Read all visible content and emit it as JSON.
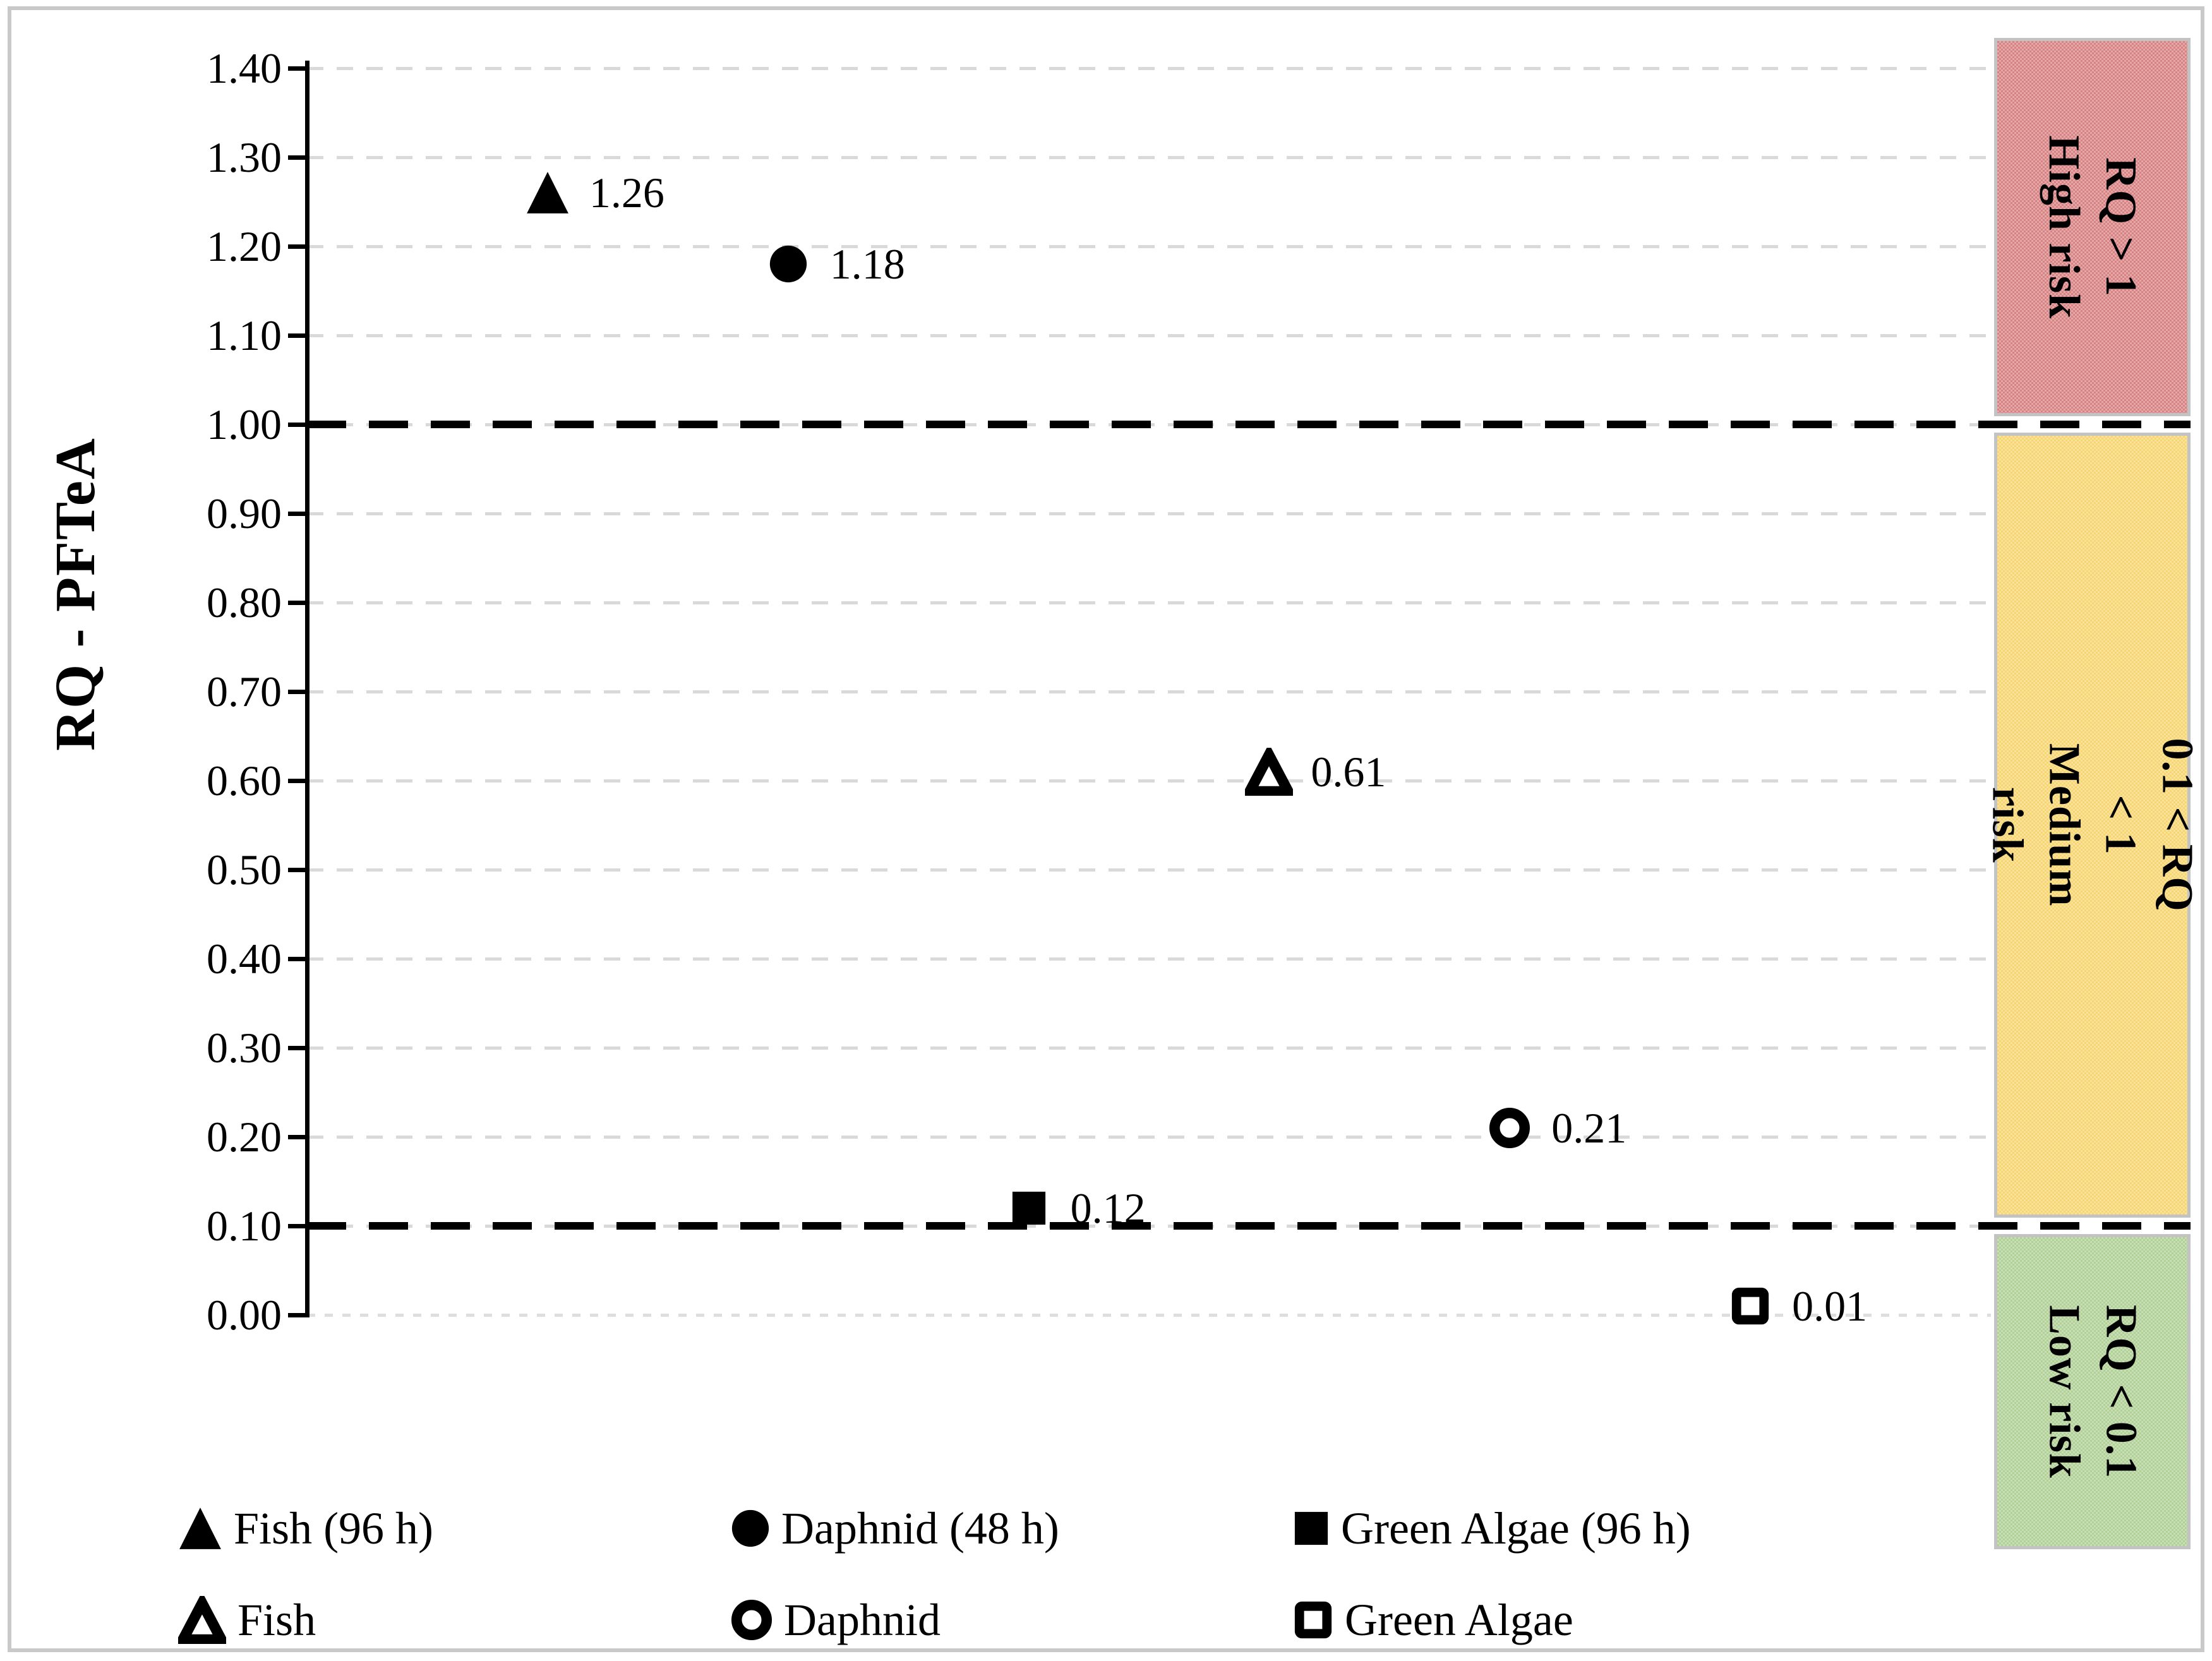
{
  "figure": {
    "background_color": "#FFFFFF",
    "frame_border_color": "#C9C9C9"
  },
  "chart_data": {
    "type": "scatter",
    "title": "",
    "xlabel": "",
    "ylabel": "RQ - PFTeA",
    "ylim": [
      0.0,
      1.4
    ],
    "ytick_step": 0.1,
    "grid": "dashed-horizontal",
    "grid_color": "#D9D9D9",
    "threshold_line_color": "#000000",
    "yticks": [
      {
        "value": 1.4,
        "label": "1.40"
      },
      {
        "value": 1.3,
        "label": "1.30"
      },
      {
        "value": 1.2,
        "label": "1.20"
      },
      {
        "value": 1.1,
        "label": "1.10"
      },
      {
        "value": 1.0,
        "label": "1.00"
      },
      {
        "value": 0.9,
        "label": "0.90"
      },
      {
        "value": 0.8,
        "label": "0.80"
      },
      {
        "value": 0.7,
        "label": "0.70"
      },
      {
        "value": 0.6,
        "label": "0.60"
      },
      {
        "value": 0.5,
        "label": "0.50"
      },
      {
        "value": 0.4,
        "label": "0.40"
      },
      {
        "value": 0.3,
        "label": "0.30"
      },
      {
        "value": 0.2,
        "label": "0.20"
      },
      {
        "value": 0.1,
        "label": "0.10"
      },
      {
        "value": 0.0,
        "label": "0.00"
      }
    ],
    "thresholds": [
      {
        "value": 1.0
      },
      {
        "value": 0.1
      }
    ],
    "points": [
      {
        "name": "fish-96h",
        "series": "Fish (96 h)",
        "marker": "triangle-filled",
        "value": 1.26,
        "label": "1.26"
      },
      {
        "name": "daphnid-48h",
        "series": "Daphnid (48 h)",
        "marker": "circle-filled",
        "value": 1.18,
        "label": "1.18"
      },
      {
        "name": "green-algae-96h",
        "series": "Green Algae (96 h)",
        "marker": "square-filled",
        "value": 0.12,
        "label": "0.12"
      },
      {
        "name": "fish-chronic",
        "series": "Fish",
        "marker": "triangle-open",
        "value": 0.61,
        "label": "0.61"
      },
      {
        "name": "daphnid-chronic",
        "series": "Daphnid",
        "marker": "circle-open",
        "value": 0.21,
        "label": "0.21"
      },
      {
        "name": "green-algae-chronic",
        "series": "Green Algae",
        "marker": "square-open",
        "value": 0.01,
        "label": "0.01"
      }
    ],
    "bands": [
      {
        "name": "high-risk",
        "label_lines": [
          "RQ > 1",
          "High risk"
        ],
        "color": "#D88383",
        "value_range": [
          1.0,
          1.434
        ]
      },
      {
        "name": "medium-risk",
        "label_lines": [
          "0.1 < RQ < 1 Medium risk"
        ],
        "color": "#F7D570",
        "value_range": [
          0.1,
          1.0
        ]
      },
      {
        "name": "low-risk",
        "label_lines": [
          "RQ < 0.1",
          "Low risk"
        ],
        "color": "#B0D096",
        "value_range": [
          -0.263,
          0.1
        ]
      }
    ],
    "legend": {
      "rows": [
        [
          {
            "marker": "triangle-filled",
            "label": "Fish (96 h)"
          },
          {
            "marker": "circle-filled",
            "label": "Daphnid (48 h)"
          },
          {
            "marker": "square-filled",
            "label": "Green Algae (96 h)"
          }
        ],
        [
          {
            "marker": "triangle-open",
            "label": "Fish"
          },
          {
            "marker": "circle-open",
            "label": "Daphnid"
          },
          {
            "marker": "square-open",
            "label": "Green Algae"
          }
        ]
      ]
    }
  }
}
